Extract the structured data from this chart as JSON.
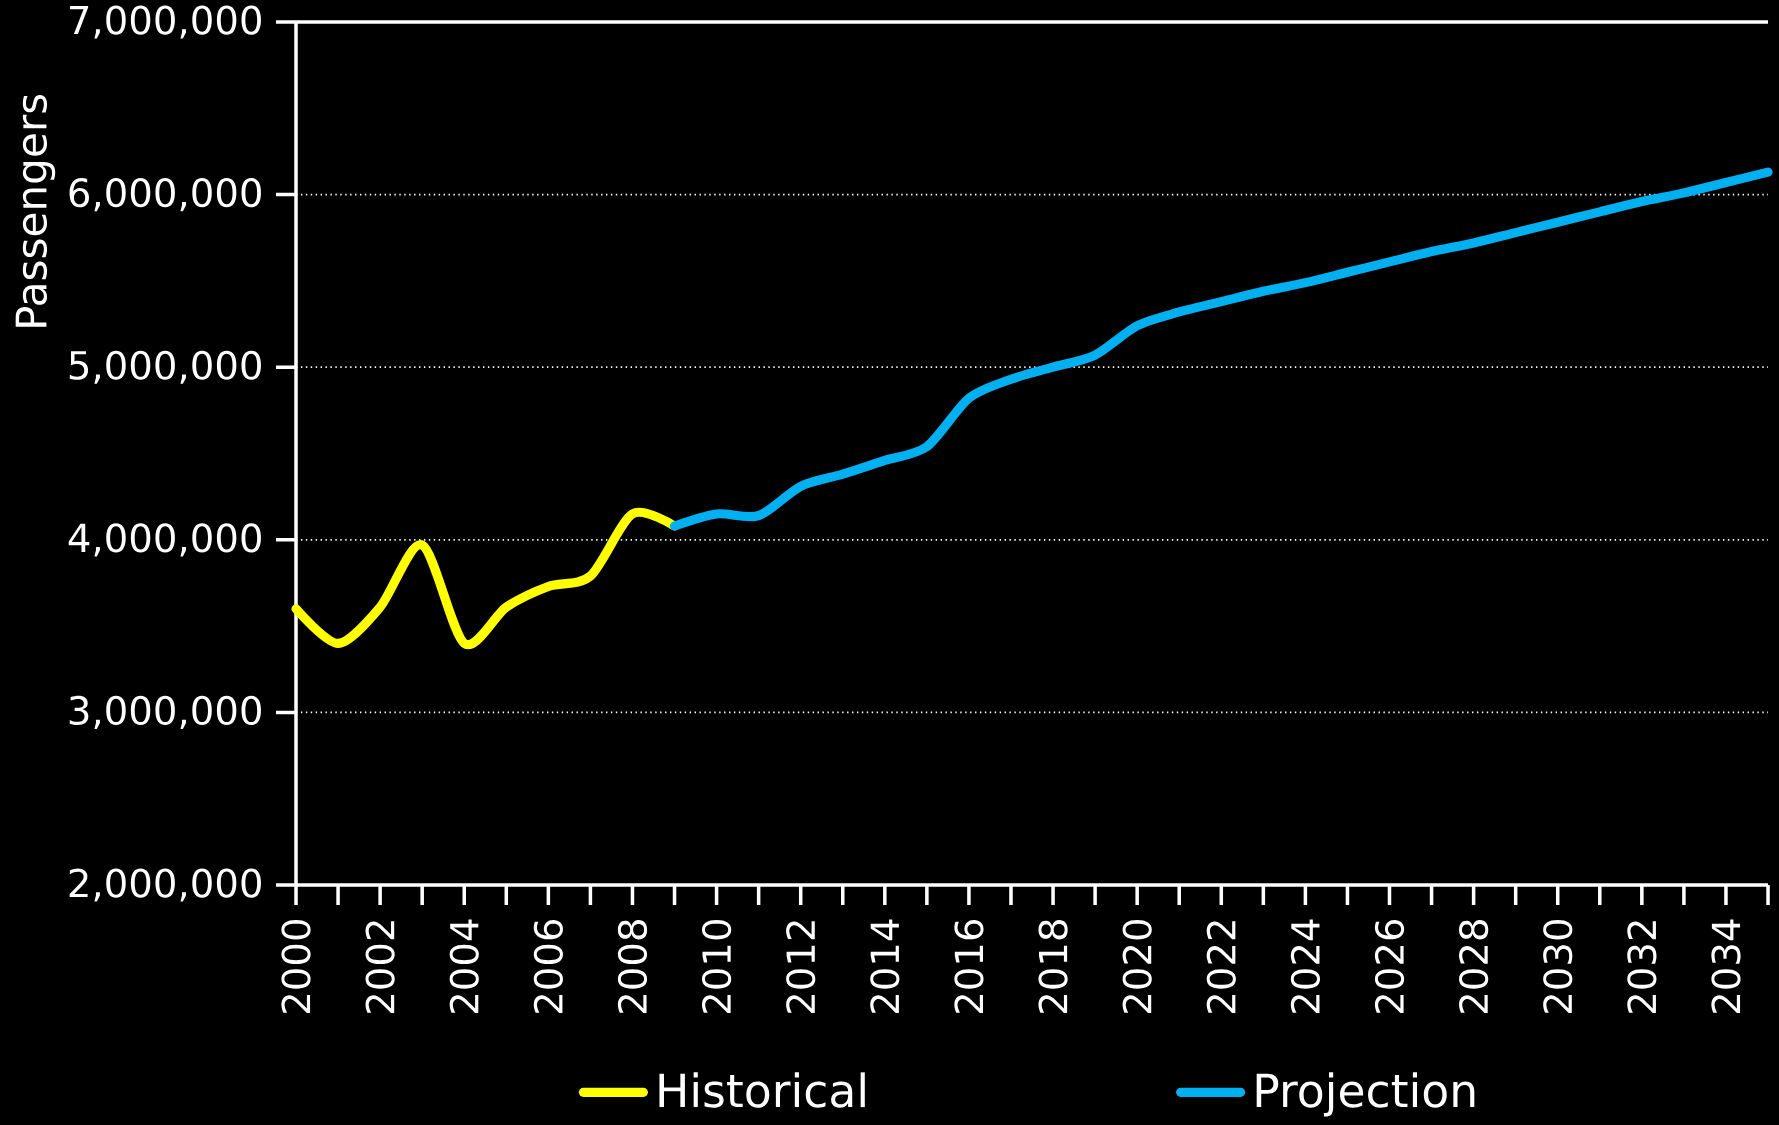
{
  "chart_data": {
    "type": "line",
    "ylabel": "Passengers",
    "xlim": [
      2000,
      2035
    ],
    "ylim": [
      2000000,
      7000000
    ],
    "xticks": [
      2000,
      2002,
      2004,
      2006,
      2008,
      2010,
      2012,
      2014,
      2016,
      2018,
      2020,
      2022,
      2024,
      2026,
      2028,
      2030,
      2032,
      2034
    ],
    "yticks": [
      {
        "value": 2000000,
        "label": "2,000,000"
      },
      {
        "value": 3000000,
        "label": "3,000,000"
      },
      {
        "value": 4000000,
        "label": "4,000,000"
      },
      {
        "value": 5000000,
        "label": "5,000,000"
      },
      {
        "value": 6000000,
        "label": "6,000,000"
      },
      {
        "value": 7000000,
        "label": "7,000,000"
      }
    ],
    "grid": "y",
    "legend": "bottom",
    "series": [
      {
        "name": "Historical",
        "color": "#ffff00",
        "x": [
          2000,
          2001,
          2002,
          2003,
          2004,
          2005,
          2006,
          2007,
          2008,
          2009
        ],
        "values": [
          3600000,
          3400000,
          3610000,
          3970000,
          3400000,
          3610000,
          3730000,
          3790000,
          4150000,
          4080000
        ]
      },
      {
        "name": "Projection",
        "color": "#00b0f0",
        "x": [
          2009,
          2010,
          2011,
          2012,
          2013,
          2014,
          2015,
          2016,
          2017,
          2018,
          2019,
          2020,
          2021,
          2022,
          2023,
          2024,
          2025,
          2026,
          2027,
          2028,
          2029,
          2030,
          2031,
          2032,
          2033,
          2034,
          2035
        ],
        "values": [
          4080000,
          4150000,
          4140000,
          4310000,
          4380000,
          4460000,
          4540000,
          4820000,
          4930000,
          5000000,
          5070000,
          5240000,
          5320000,
          5380000,
          5440000,
          5490000,
          5550000,
          5610000,
          5670000,
          5720000,
          5780000,
          5840000,
          5900000,
          5960000,
          6010000,
          6070000,
          6130000
        ]
      }
    ]
  }
}
